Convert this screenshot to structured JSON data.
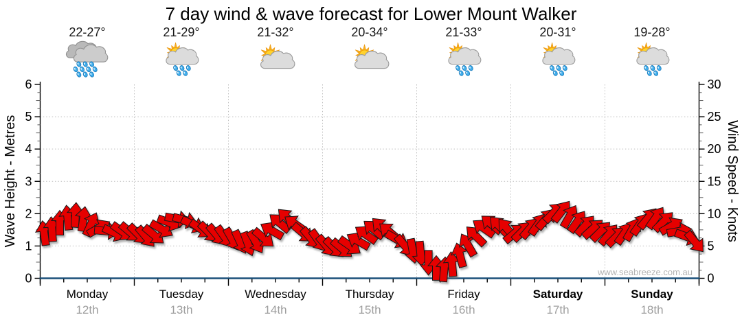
{
  "title": "7 day wind & wave forecast for Lower Mount Walker",
  "watermark": "www.seabreeze.com.au",
  "days": [
    {
      "name": "Monday",
      "date": "12th",
      "temp": "22-27°",
      "icon": "rain-cloud",
      "bold": false
    },
    {
      "name": "Tuesday",
      "date": "13th",
      "temp": "21-29°",
      "icon": "sun-cloud-rain",
      "bold": false
    },
    {
      "name": "Wednesday",
      "date": "14th",
      "temp": "21-32°",
      "icon": "sun-cloud",
      "bold": false
    },
    {
      "name": "Thursday",
      "date": "15th",
      "temp": "20-34°",
      "icon": "sun-cloud",
      "bold": false
    },
    {
      "name": "Friday",
      "date": "16th",
      "temp": "21-33°",
      "icon": "sun-cloud-rain",
      "bold": false
    },
    {
      "name": "Saturday",
      "date": "17th",
      "temp": "20-31°",
      "icon": "sun-cloud-rain",
      "bold": true
    },
    {
      "name": "Sunday",
      "date": "18th",
      "temp": "19-28°",
      "icon": "sun-cloud-rain",
      "bold": true
    }
  ],
  "chart_data": {
    "type": "wind-arrows",
    "title": "7 day wind & wave forecast for Lower Mount Walker",
    "left_axis": {
      "label": "Wave Height - Metres",
      "min": 0,
      "max": 6,
      "ticks": [
        0,
        1,
        2,
        3,
        4,
        5,
        6
      ]
    },
    "right_axis": {
      "label": "Wind Speed - Knots",
      "min": 0,
      "max": 30,
      "ticks": [
        0,
        5,
        10,
        15,
        20,
        25,
        30
      ]
    },
    "x_axis": {
      "categories": [
        "Monday",
        "Tuesday",
        "Wednesday",
        "Thursday",
        "Friday",
        "Saturday",
        "Sunday"
      ],
      "dates": [
        "12th",
        "13th",
        "14th",
        "15th",
        "16th",
        "17th",
        "18th"
      ]
    },
    "grid_h_lines_metres": [
      1,
      2,
      3,
      4,
      5
    ],
    "grid_v_lines": "day-boundaries",
    "wave_height_metres": 0,
    "samples_per_day": 12,
    "wind_speed_knots": [
      7.0,
      7.6,
      8.6,
      9.4,
      9.8,
      9.2,
      8.4,
      7.8,
      7.3,
      7.0,
      7.2,
      7.1,
      6.8,
      6.4,
      6.7,
      7.6,
      8.6,
      9.2,
      9.0,
      8.3,
      7.6,
      7.1,
      6.7,
      6.4,
      6.0,
      5.6,
      5.3,
      5.6,
      6.2,
      7.4,
      8.6,
      9.3,
      8.4,
      7.0,
      6.2,
      5.8,
      5.0,
      4.7,
      4.6,
      5.0,
      5.8,
      6.8,
      7.6,
      7.9,
      7.2,
      6.0,
      5.0,
      4.2,
      3.8,
      2.4,
      1.6,
      1.4,
      2.2,
      3.6,
      5.2,
      6.6,
      7.8,
      8.4,
      8.1,
      7.7,
      7.0,
      7.3,
      7.8,
      8.4,
      9.2,
      10.2,
      10.4,
      9.6,
      8.8,
      8.2,
      7.7,
      7.3,
      6.8,
      6.5,
      7.0,
      7.6,
      8.4,
      9.3,
      9.4,
      8.8,
      8.1,
      7.3,
      6.4,
      5.6
    ],
    "wind_direction_deg": [
      -8,
      -4,
      0,
      -6,
      3,
      8,
      25,
      60,
      95,
      115,
      125,
      130,
      135,
      140,
      130,
      120,
      110,
      100,
      105,
      115,
      125,
      135,
      140,
      145,
      150,
      155,
      160,
      150,
      130,
      -60,
      -50,
      -45,
      -55,
      130,
      140,
      145,
      140,
      135,
      130,
      125,
      -60,
      -55,
      -50,
      -45,
      -50,
      120,
      140,
      170,
      175,
      180,
      0,
      5,
      -5,
      -15,
      -30,
      -45,
      -55,
      -50,
      -45,
      -40,
      50,
      45,
      40,
      35,
      40,
      45,
      38,
      30,
      35,
      42,
      48,
      45,
      40,
      45,
      35,
      30,
      35,
      40,
      35,
      45,
      60,
      80,
      110,
      140
    ],
    "colors": {
      "arrow": "#e60000",
      "arrow_outline": "#181818",
      "grid": "#bdbdbd",
      "x_axis_line": "#184f78",
      "axis": "#000000",
      "date_label": "#9e9e9e",
      "watermark": "#b3b3b3"
    }
  }
}
